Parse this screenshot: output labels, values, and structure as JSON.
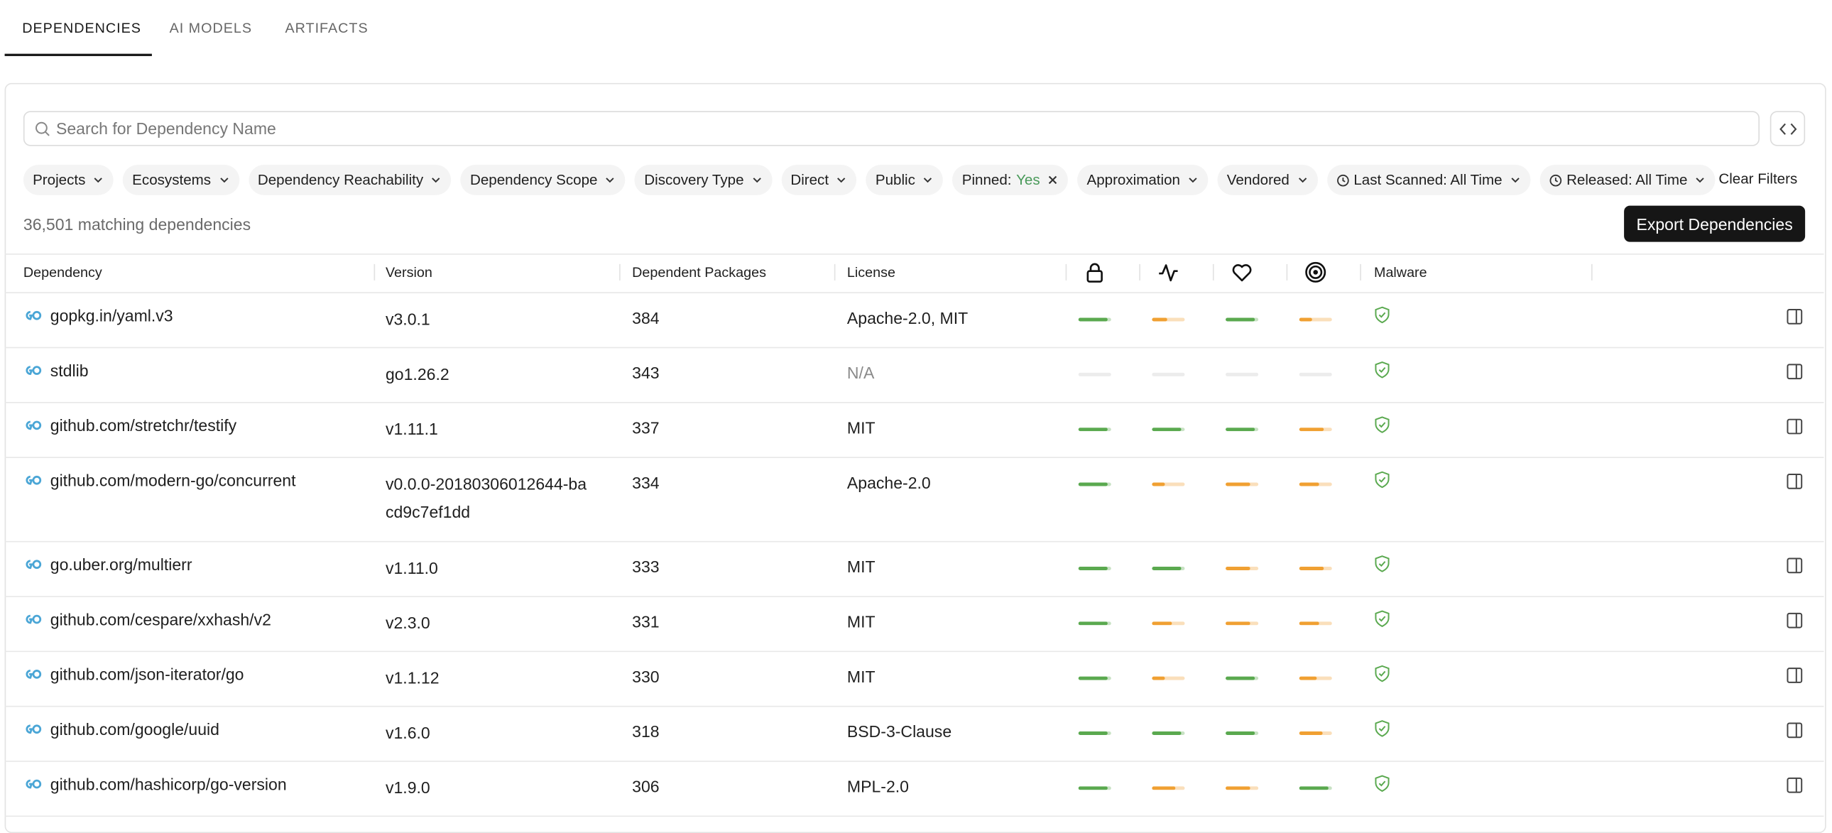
{
  "tabs": [
    {
      "label": "DEPENDENCIES",
      "active": true
    },
    {
      "label": "AI MODELS",
      "active": false
    },
    {
      "label": "ARTIFACTS",
      "active": false
    }
  ],
  "search": {
    "placeholder": "Search for Dependency Name"
  },
  "filters": [
    {
      "label": "Projects"
    },
    {
      "label": "Ecosystems"
    },
    {
      "label": "Dependency Reachability"
    },
    {
      "label": "Dependency Scope"
    },
    {
      "label": "Discovery Type"
    },
    {
      "label": "Direct"
    },
    {
      "label": "Public"
    },
    {
      "label": "Pinned:",
      "value": "Yes"
    },
    {
      "label": "Approximation"
    },
    {
      "label": "Vendored"
    },
    {
      "label": "Last Scanned: All Time",
      "icon": "clock"
    },
    {
      "label": "Released: All Time",
      "icon": "clock"
    }
  ],
  "clear_filters": "Clear Filters",
  "count_text": "36,501 matching dependencies",
  "export_button": "Export Dependencies",
  "table": {
    "columns": [
      "Dependency",
      "Version",
      "Dependent Packages",
      "License",
      "Malware"
    ],
    "rows": [
      {
        "name": "gopkg.in/yaml.v3",
        "version": "v3.0.1",
        "dependents": "384",
        "license": "Apache-2.0, MIT",
        "scores": [
          {
            "value": 0.9,
            "color": "#5aa94f"
          },
          {
            "value": 0.45,
            "color": "#f0a032"
          },
          {
            "value": 0.9,
            "color": "#5aa94f"
          },
          {
            "value": 0.4,
            "color": "#f0a032"
          }
        ]
      },
      {
        "name": "stdlib",
        "version": "go1.26.2",
        "dependents": "343",
        "license": "N/A",
        "scores": [
          null,
          null,
          null,
          null
        ]
      },
      {
        "name": "github.com/stretchr/testify",
        "version": "v1.11.1",
        "dependents": "337",
        "license": "MIT",
        "scores": [
          {
            "value": 0.9,
            "color": "#5aa94f"
          },
          {
            "value": 0.9,
            "color": "#5aa94f"
          },
          {
            "value": 0.9,
            "color": "#5aa94f"
          },
          {
            "value": 0.75,
            "color": "#f0a032"
          }
        ]
      },
      {
        "name": "github.com/modern-go/concurrent",
        "version": "v0.0.0-20180306012644-bacd9c7ef1dd",
        "dependents": "334",
        "license": "Apache-2.0",
        "scores": [
          {
            "value": 0.9,
            "color": "#5aa94f"
          },
          {
            "value": 0.4,
            "color": "#f0a032"
          },
          {
            "value": 0.75,
            "color": "#f0a032"
          },
          {
            "value": 0.6,
            "color": "#f0a032"
          }
        ]
      },
      {
        "name": "go.uber.org/multierr",
        "version": "v1.11.0",
        "dependents": "333",
        "license": "MIT",
        "scores": [
          {
            "value": 0.9,
            "color": "#5aa94f"
          },
          {
            "value": 0.9,
            "color": "#5aa94f"
          },
          {
            "value": 0.75,
            "color": "#f0a032"
          },
          {
            "value": 0.75,
            "color": "#f0a032"
          }
        ]
      },
      {
        "name": "github.com/cespare/xxhash/v2",
        "version": "v2.3.0",
        "dependents": "331",
        "license": "MIT",
        "scores": [
          {
            "value": 0.9,
            "color": "#5aa94f"
          },
          {
            "value": 0.6,
            "color": "#f0a032"
          },
          {
            "value": 0.75,
            "color": "#f0a032"
          },
          {
            "value": 0.6,
            "color": "#f0a032"
          }
        ]
      },
      {
        "name": "github.com/json-iterator/go",
        "version": "v1.1.12",
        "dependents": "330",
        "license": "MIT",
        "scores": [
          {
            "value": 0.9,
            "color": "#5aa94f"
          },
          {
            "value": 0.4,
            "color": "#f0a032"
          },
          {
            "value": 0.9,
            "color": "#5aa94f"
          },
          {
            "value": 0.55,
            "color": "#f0a032"
          }
        ]
      },
      {
        "name": "github.com/google/uuid",
        "version": "v1.6.0",
        "dependents": "318",
        "license": "BSD-3-Clause",
        "scores": [
          {
            "value": 0.9,
            "color": "#5aa94f"
          },
          {
            "value": 0.9,
            "color": "#5aa94f"
          },
          {
            "value": 0.9,
            "color": "#5aa94f"
          },
          {
            "value": 0.7,
            "color": "#f0a032"
          }
        ]
      },
      {
        "name": "github.com/hashicorp/go-version",
        "version": "v1.9.0",
        "dependents": "306",
        "license": "MPL-2.0",
        "scores": [
          {
            "value": 0.9,
            "color": "#5aa94f"
          },
          {
            "value": 0.7,
            "color": "#f0a032"
          },
          {
            "value": 0.75,
            "color": "#f0a032"
          },
          {
            "value": 0.9,
            "color": "#5aa94f"
          }
        ]
      }
    ]
  }
}
